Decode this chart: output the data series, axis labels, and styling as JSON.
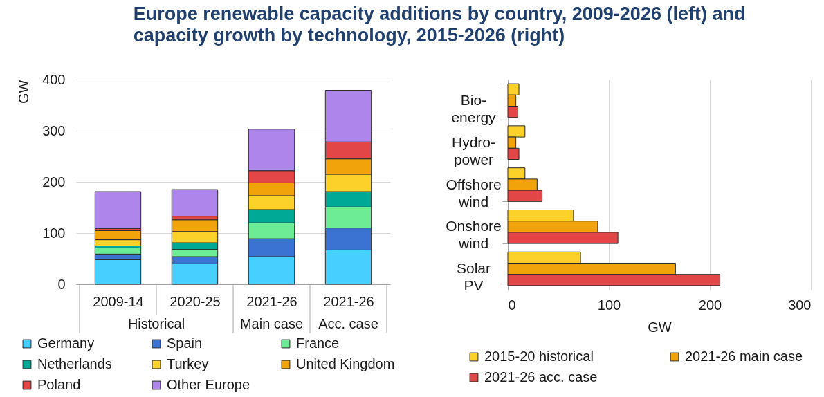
{
  "chart_data": [
    {
      "type": "bar",
      "title": "Europe renewable capacity additions by country, 2009-2026 (left) and capacity growth by technology, 2015-2026 (right)",
      "ylabel": "GW",
      "categories": [
        "2009-14",
        "2020-25",
        "2021-26",
        "2021-26"
      ],
      "annotations": [
        "Historical",
        "Main case",
        "Acc. case"
      ],
      "stacked": true,
      "series": [
        {
          "name": "Germany",
          "color": "#47cfff",
          "values": [
            48,
            40,
            54,
            67
          ]
        },
        {
          "name": "Spain",
          "color": "#3b73d2",
          "values": [
            11,
            14,
            35,
            43
          ]
        },
        {
          "name": "France",
          "color": "#6eeb95",
          "values": [
            12,
            14,
            31,
            41
          ]
        },
        {
          "name": "Netherlands",
          "color": "#00a896",
          "values": [
            4,
            13,
            26,
            30
          ]
        },
        {
          "name": "Turkey",
          "color": "#fcd12a",
          "values": [
            12,
            22,
            27,
            34
          ]
        },
        {
          "name": "United Kingdom",
          "color": "#f0a30a",
          "values": [
            18,
            23,
            25,
            30
          ]
        },
        {
          "name": "Poland",
          "color": "#e24646",
          "values": [
            4,
            7,
            24,
            33
          ]
        },
        {
          "name": "Other Europe",
          "color": "#ad85eb",
          "values": [
            72,
            52,
            81,
            101
          ]
        }
      ],
      "ylim": [
        0,
        400
      ],
      "yticks": [
        0,
        100,
        200,
        300,
        400
      ],
      "grid": "y",
      "legend": "bottom"
    },
    {
      "type": "bar",
      "orientation": "horizontal",
      "xlabel": "GW",
      "categories": [
        "Bio-energy",
        "Hydro-power",
        "Offshore wind",
        "Onshore wind",
        "Solar PV"
      ],
      "series": [
        {
          "name": "2015-20 historical",
          "color": "#fcd12a",
          "values": [
            11,
            17,
            17,
            65,
            72
          ]
        },
        {
          "name": "2021-26 main case",
          "color": "#f0a30a",
          "values": [
            8,
            8,
            29,
            89,
            166
          ]
        },
        {
          "name": "2021-26 acc. case",
          "color": "#e24646",
          "values": [
            10,
            11,
            34,
            109,
            210
          ]
        }
      ],
      "xlim": [
        0,
        300
      ],
      "xticks": [
        0,
        100,
        200,
        300
      ],
      "grid": "x",
      "legend": "bottom"
    }
  ]
}
